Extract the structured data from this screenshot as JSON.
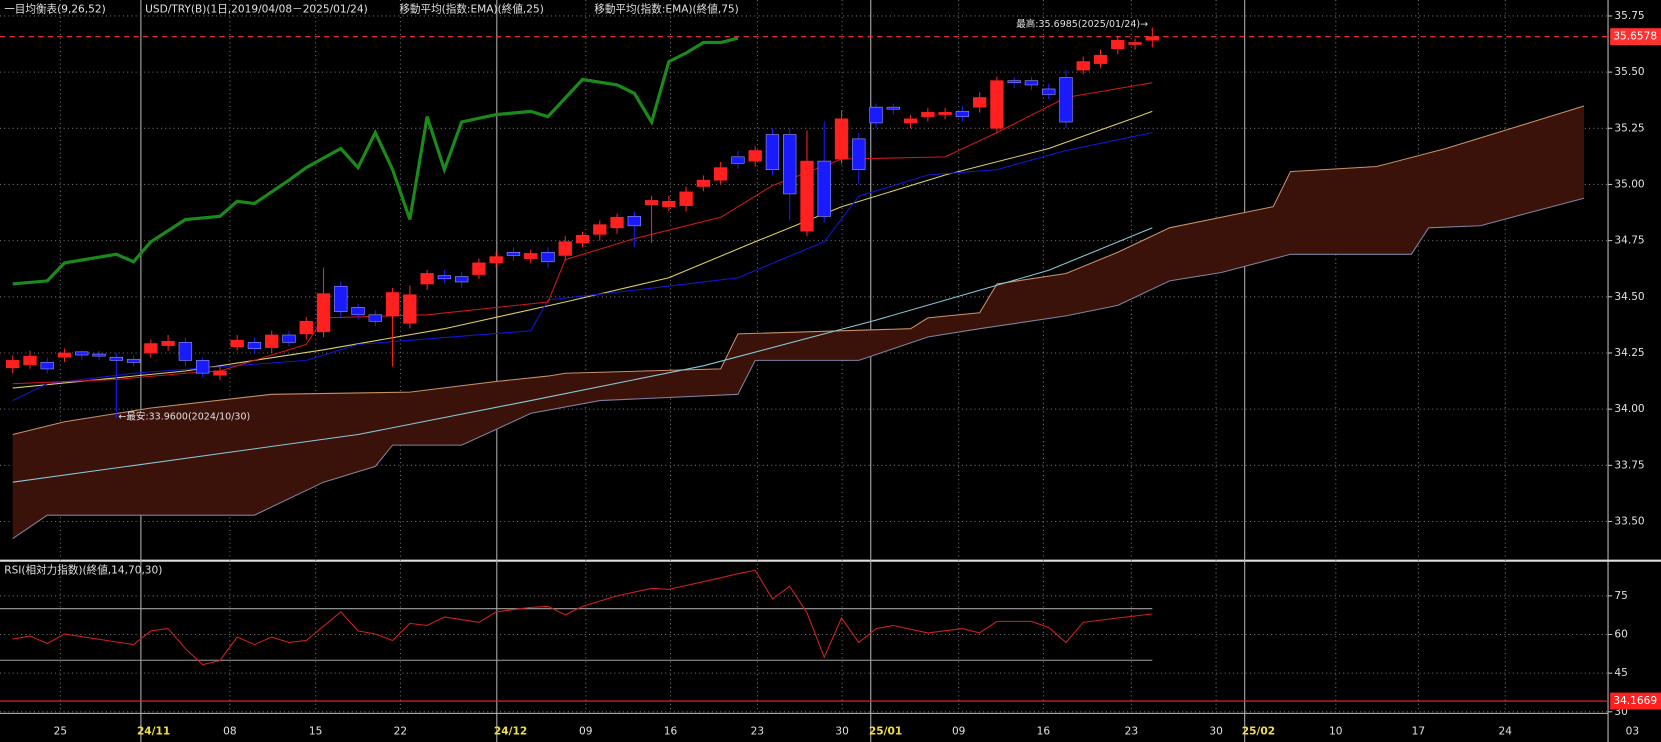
{
  "x_axis": {
    "labels": [
      "25",
      "24/11",
      "08",
      "15",
      "22",
      "24/12",
      "09",
      "16",
      "23",
      "30",
      "25/01",
      "09",
      "16",
      "23",
      "30",
      "25/02",
      "10",
      "17",
      "24",
      "03"
    ]
  },
  "chart_data": [
    {
      "type": "candlestick",
      "title": "一目均衡表(9,26,52)",
      "subtitles": [
        "USD/TRY(B)(1日,2019/04/08－2025/01/24)",
        "移動平均(指数:EMA)(終値,25)",
        "移動平均(指数:EMA)(終値,75)"
      ],
      "annotations": [
        {
          "text": "最高:35.6985(2025/01/24)→"
        },
        {
          "text": "←最安:33.9600(2024/10/30)"
        }
      ],
      "open": [
        34.184,
        34.198,
        34.208,
        34.231,
        34.255,
        34.245,
        34.231,
        34.222,
        34.25,
        34.283,
        34.297,
        34.217,
        34.151,
        34.278,
        34.297,
        34.274,
        34.33,
        34.335,
        34.344,
        34.547,
        34.453,
        34.42,
        34.415,
        34.382,
        34.557,
        34.594,
        34.59,
        34.599,
        34.651,
        34.698,
        34.67,
        34.698,
        34.684,
        34.74,
        34.778,
        34.807,
        34.858,
        34.91,
        34.901,
        34.906,
        34.991,
        35.019,
        35.123,
        35.104,
        35.222,
        35.222,
        34.792,
        35.104,
        35.113,
        35.203,
        35.344,
        35.344,
        35.274,
        35.302,
        35.311,
        35.325,
        35.344,
        35.25,
        35.462,
        35.462,
        35.425,
        35.476,
        35.509,
        35.538,
        35.604,
        35.623,
        35.642
      ],
      "high": [
        34.24,
        34.26,
        34.23,
        34.27,
        34.26,
        34.26,
        34.25,
        34.24,
        34.31,
        34.33,
        34.32,
        34.23,
        34.19,
        34.33,
        34.32,
        34.35,
        34.35,
        34.41,
        34.63,
        34.57,
        34.47,
        34.44,
        34.54,
        34.55,
        34.62,
        34.62,
        34.61,
        34.67,
        34.7,
        34.72,
        34.71,
        34.72,
        34.77,
        34.79,
        34.84,
        34.87,
        34.88,
        34.95,
        34.95,
        34.99,
        35.04,
        35.1,
        35.15,
        35.17,
        35.25,
        35.25,
        35.24,
        35.28,
        35.33,
        35.23,
        35.36,
        35.36,
        35.31,
        35.34,
        35.34,
        35.35,
        35.41,
        35.48,
        35.48,
        35.48,
        35.45,
        35.51,
        35.57,
        35.6,
        35.66,
        35.65,
        35.6985
      ],
      "low": [
        34.16,
        34.18,
        34.16,
        34.21,
        34.22,
        34.22,
        33.96,
        34.19,
        34.23,
        34.26,
        34.19,
        34.14,
        34.13,
        34.26,
        34.25,
        34.25,
        34.28,
        34.31,
        34.32,
        34.41,
        34.4,
        34.37,
        34.19,
        34.36,
        34.53,
        34.56,
        34.54,
        34.58,
        34.63,
        34.66,
        34.65,
        34.63,
        34.66,
        34.72,
        34.75,
        34.78,
        34.72,
        34.74,
        34.88,
        34.88,
        34.97,
        35.0,
        35.07,
        35.08,
        35.04,
        34.84,
        34.77,
        34.83,
        35.09,
        35.0,
        35.25,
        35.31,
        35.25,
        35.28,
        35.29,
        35.28,
        35.32,
        35.23,
        35.43,
        35.42,
        35.38,
        35.25,
        35.49,
        35.52,
        35.58,
        35.6,
        35.61
      ],
      "close": [
        34.217,
        34.236,
        34.179,
        34.25,
        34.241,
        34.236,
        34.217,
        34.208,
        34.292,
        34.302,
        34.217,
        34.16,
        34.17,
        34.307,
        34.269,
        34.33,
        34.297,
        34.391,
        34.514,
        34.434,
        34.42,
        34.391,
        34.519,
        34.509,
        34.604,
        34.58,
        34.566,
        34.651,
        34.679,
        34.684,
        34.693,
        34.656,
        34.745,
        34.774,
        34.821,
        34.854,
        34.816,
        34.929,
        34.925,
        34.967,
        35.019,
        35.075,
        35.094,
        35.151,
        35.066,
        34.958,
        35.104,
        34.858,
        35.292,
        35.066,
        35.274,
        35.335,
        35.292,
        35.321,
        35.321,
        35.302,
        35.387,
        35.462,
        35.453,
        35.443,
        35.401,
        35.278,
        35.547,
        35.575,
        35.642,
        35.632,
        35.6578
      ],
      "up_color": "#ff2020",
      "down_color": "#1a1aff",
      "last_price_color": "#ff3030",
      "cloud": {
        "color": "#3a120a",
        "upper": {
          "color": "#c8906a",
          "x": [
            0,
            3,
            8,
            15,
            23,
            28,
            31,
            32,
            41,
            42,
            52,
            53,
            56,
            57,
            61,
            64,
            67,
            73,
            74,
            79,
            83,
            88,
            91
          ],
          "values": [
            33.887,
            33.944,
            34.005,
            34.066,
            34.076,
            34.123,
            34.147,
            34.16,
            34.179,
            34.335,
            34.358,
            34.406,
            34.429,
            34.557,
            34.604,
            34.698,
            34.807,
            34.901,
            35.057,
            35.08,
            35.16,
            35.278,
            35.349
          ]
        },
        "lower": {
          "color": "#8080a0",
          "x": [
            0,
            2,
            14,
            18,
            21,
            22,
            26,
            28,
            30,
            34,
            42,
            43,
            49,
            53,
            56,
            61,
            64,
            67,
            70,
            74,
            81,
            82,
            85,
            88,
            91
          ],
          "values": [
            33.424,
            33.528,
            33.528,
            33.675,
            33.745,
            33.84,
            33.84,
            33.91,
            33.981,
            34.038,
            34.066,
            34.217,
            34.217,
            34.321,
            34.358,
            34.415,
            34.462,
            34.571,
            34.608,
            34.689,
            34.689,
            34.807,
            34.816,
            34.878,
            34.939
          ]
        }
      },
      "series": [
        {
          "color": "#88c8d8",
          "x": [
            0,
            20,
            30,
            40,
            50,
            60,
            66
          ],
          "values": [
            33.675,
            33.887,
            34.038,
            34.193,
            34.396,
            34.618,
            34.807
          ]
        },
        {
          "color": "#e0d060",
          "x": [
            0,
            10,
            18,
            25,
            32,
            38,
            43,
            48,
            54,
            60,
            66
          ],
          "values": [
            34.094,
            34.17,
            34.264,
            34.358,
            34.477,
            34.585,
            34.745,
            34.901,
            35.042,
            35.16,
            35.325
          ]
        },
        {
          "color": "#1414d8",
          "x": [
            0,
            2,
            7,
            17,
            20,
            30,
            31,
            37,
            42,
            47,
            49,
            53,
            57,
            61,
            66
          ],
          "values": [
            34.038,
            34.113,
            34.16,
            34.217,
            34.288,
            34.349,
            34.486,
            34.538,
            34.585,
            34.745,
            34.948,
            35.042,
            35.066,
            35.151,
            35.231
          ]
        },
        {
          "color": "#d01818",
          "x": [
            0,
            6,
            10,
            12,
            17,
            18,
            24,
            31,
            32,
            36,
            41,
            44,
            48,
            54,
            57,
            61,
            66
          ],
          "values": [
            34.113,
            34.132,
            34.16,
            34.17,
            34.288,
            34.406,
            34.42,
            34.477,
            34.665,
            34.759,
            34.854,
            34.995,
            35.113,
            35.123,
            35.231,
            35.387,
            35.453
          ]
        },
        {
          "color": "#1a8a1a",
          "width": 3,
          "x": [
            0,
            2,
            3,
            6,
            7,
            8,
            10,
            12,
            13,
            14,
            16,
            17,
            19,
            20,
            21,
            22,
            23,
            24,
            25,
            26,
            28,
            30,
            31,
            33,
            35,
            36,
            37,
            38,
            39,
            40,
            41,
            42
          ],
          "values": [
            34.557,
            34.571,
            34.651,
            34.689,
            34.656,
            34.745,
            34.844,
            34.858,
            34.925,
            34.915,
            35.019,
            35.075,
            35.16,
            35.075,
            35.231,
            35.066,
            34.844,
            35.302,
            35.066,
            35.278,
            35.311,
            35.325,
            35.302,
            35.467,
            35.443,
            35.406,
            35.278,
            35.547,
            35.585,
            35.632,
            35.632,
            35.651
          ]
        }
      ],
      "ylim": [
        33.33,
        35.821
      ],
      "yticks": [
        {
          "value": 33.5,
          "label": "33.50"
        },
        33.75,
        {
          "value": 34,
          "label": "34.00"
        },
        34.25,
        {
          "value": 34.5,
          "label": "34.50"
        },
        34.75,
        {
          "value": 35,
          "label": "35.00"
        },
        35.25,
        {
          "value": 35.5,
          "label": "35.50"
        },
        35.75
      ],
      "grid": true
    },
    {
      "type": "line",
      "title": "RSI(相対力指数)(終値,14,70,30)",
      "series": [
        {
          "color": "#d02020",
          "x": [
            0,
            1,
            2,
            3,
            7,
            8,
            9,
            10,
            11,
            12,
            13,
            14,
            15,
            16,
            17,
            19,
            20,
            21,
            22,
            23,
            24,
            25,
            27,
            28,
            30,
            31,
            32,
            33,
            35,
            37,
            38,
            41,
            42,
            43,
            44,
            45,
            46,
            47,
            48,
            49,
            50,
            51,
            53,
            55,
            56,
            57,
            59,
            60,
            61,
            62,
            64,
            65,
            66
          ],
          "values": [
            58.2,
            59.4,
            56.5,
            60.2,
            56.1,
            61.4,
            62.3,
            54.5,
            48.3,
            49.9,
            59.0,
            56.1,
            59.0,
            56.9,
            57.7,
            68.8,
            61.4,
            60.2,
            57.7,
            64.3,
            63.5,
            66.8,
            64.7,
            68.8,
            70.5,
            70.9,
            67.6,
            70.9,
            75.0,
            77.9,
            77.5,
            82.0,
            83.6,
            84.9,
            73.8,
            78.7,
            68.4,
            51.2,
            66.4,
            56.9,
            62.3,
            63.5,
            60.6,
            62.3,
            60.6,
            65.1,
            65.1,
            62.7,
            56.9,
            64.7,
            66.4,
            67.2,
            68.0
          ]
        }
      ],
      "levels": [
        70,
        50
      ],
      "level_color": "#a0a0a0",
      "marker": 34.1669,
      "marker_color": "#ff2020",
      "ylim": [
        29.8,
        88.2
      ],
      "yticks": [
        75,
        60,
        45,
        30
      ],
      "grid": true
    }
  ]
}
